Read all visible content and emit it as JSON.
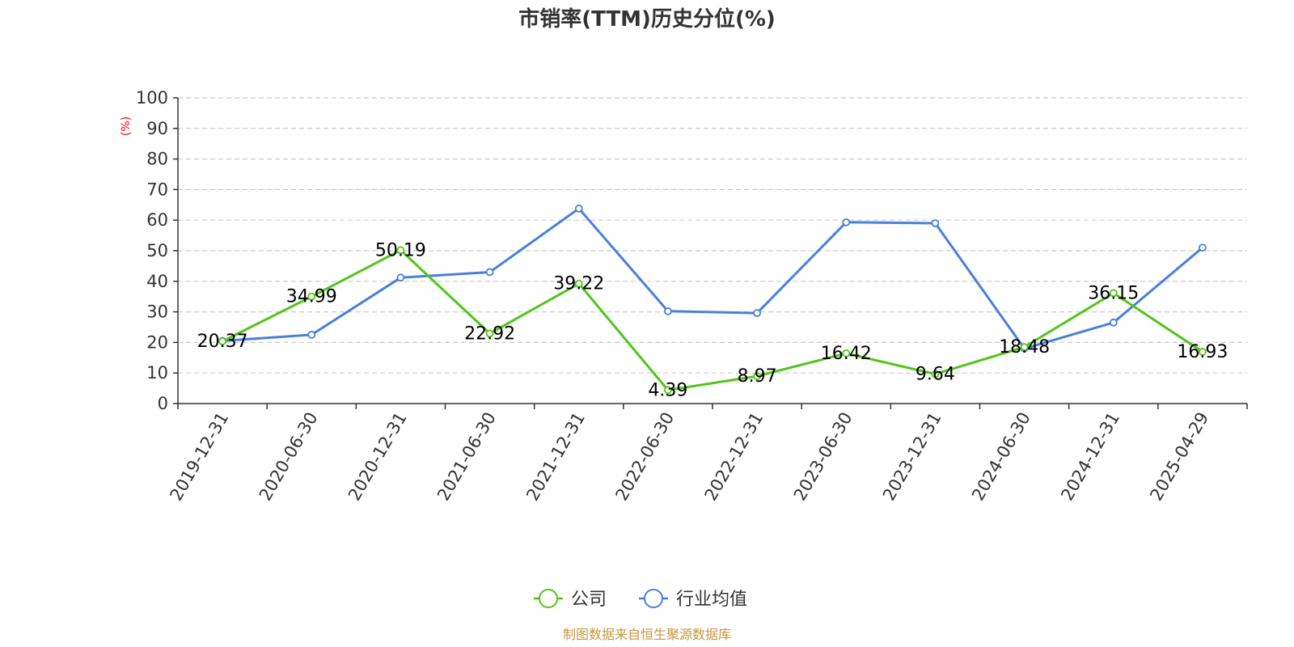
{
  "chart_data": {
    "type": "line",
    "title": "市销率(TTM)历史分位(%)",
    "ylabel": "(%)",
    "ylim": [
      0,
      100
    ],
    "yticks": [
      0,
      10,
      20,
      30,
      40,
      50,
      60,
      70,
      80,
      90,
      100
    ],
    "grid": true,
    "legend_position": "bottom-center",
    "categories": [
      "2019-12-31",
      "2020-06-30",
      "2020-12-31",
      "2021-06-30",
      "2021-12-31",
      "2022-06-30",
      "2022-12-31",
      "2023-06-30",
      "2023-12-31",
      "2024-06-30",
      "2024-12-31",
      "2025-04-29"
    ],
    "series": [
      {
        "name": "公司",
        "color": "#52c41a",
        "values": [
          20.37,
          34.99,
          50.19,
          22.92,
          39.22,
          4.39,
          8.97,
          16.42,
          9.64,
          18.48,
          36.15,
          16.93
        ],
        "labels": [
          "20.37",
          "34.99",
          "50.19",
          "22.92",
          "39.22",
          "4.39",
          "8.97",
          "16.42",
          "9.64",
          "18.48",
          "36.15",
          "16.93"
        ]
      },
      {
        "name": "行业均值",
        "color": "#4a7fdc",
        "values": [
          20.5,
          22.5,
          41.2,
          43.0,
          63.8,
          30.2,
          29.6,
          59.3,
          59.0,
          18.0,
          26.5,
          51.0
        ]
      }
    ],
    "source": "制图数据来自恒生聚源数据库"
  }
}
